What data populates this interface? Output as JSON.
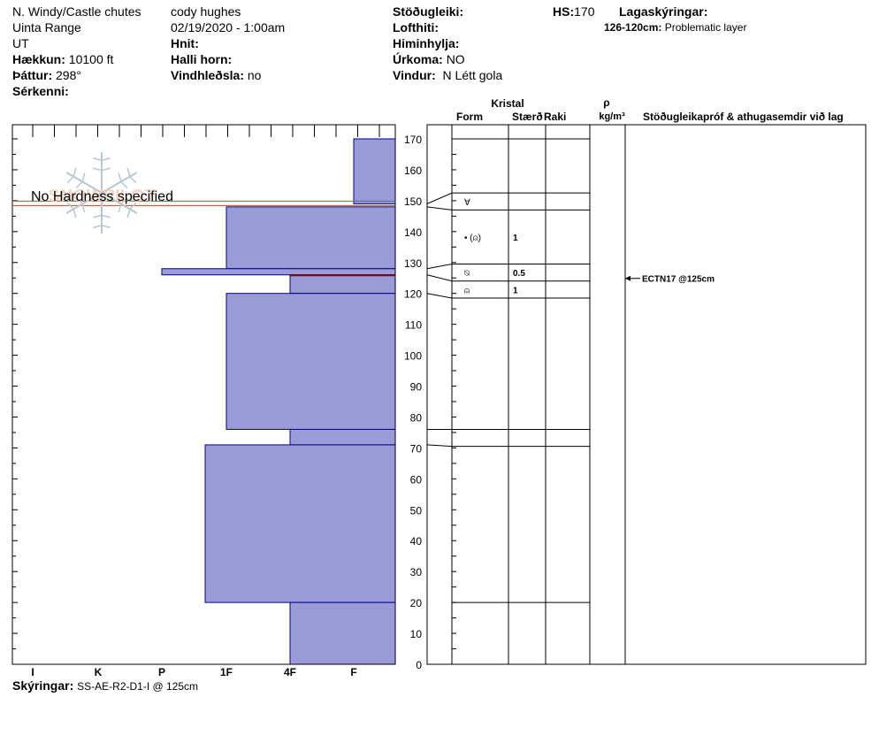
{
  "header": {
    "location": "N. Windy/Castle chutes",
    "range": "Uinta Range",
    "state": "UT",
    "elevation_label": "Hækkun:",
    "elevation": "10100 ft",
    "aspect_label": "Þáttur:",
    "aspect": "298°",
    "features_label": "Sérkenni:",
    "observer": "cody hughes",
    "datetime": "02/19/2020 - 1:00am",
    "coords_label": "Hnit:",
    "slope_label": "Halli horn:",
    "wind_loading_label": "Vindhleðsla:",
    "wind_loading": "no",
    "stability_label": "Stöðugleiki:",
    "air_temp_label": "Lofthiti:",
    "sky_label": "Himinhylja:",
    "precip_label": "Úrkoma:",
    "precip": "NO",
    "wind_label": "Vindur:",
    "wind": "N Létt gola",
    "hs_label": "HS:",
    "hs": "170",
    "layer_notes_label": "Lagaskýringar:",
    "layer_note_range": "126-120cm:",
    "layer_note_text": "Problematic layer"
  },
  "columns": {
    "crystal": "Kristal",
    "form": "Form",
    "size": "Stærð",
    "moisture": "Raki",
    "density_symbol": "ρ",
    "density_unit": "kg/m³",
    "comments": "Stöðugleikapróf & athugasemdir við lag"
  },
  "overlay": {
    "no_hardness": "No Hardness specified",
    "watermark": "SNOWPILOT"
  },
  "footer": {
    "notes_label": "Skýringar:",
    "notes": "SS-AE-R2-D1-I @ 125cm"
  },
  "colors": {
    "layer_fill": "#9b9bd7",
    "layer_stroke": "#00008b",
    "problem_line": "#8b0000",
    "no_hardness_line": "#b05030"
  },
  "chart_data": {
    "type": "bar",
    "hs": 170,
    "ylim": [
      0,
      170
    ],
    "yticks": [
      0,
      10,
      20,
      30,
      40,
      50,
      60,
      70,
      80,
      90,
      100,
      110,
      120,
      130,
      140,
      150,
      160,
      170
    ],
    "hardness_scale": [
      "I",
      "K",
      "P",
      "1F",
      "4F",
      "F"
    ],
    "layers": [
      {
        "top": 170,
        "bottom": 149,
        "hardness": "F"
      },
      {
        "top": 149,
        "bottom": 148,
        "hardness": "none"
      },
      {
        "top": 148,
        "bottom": 128,
        "hardness": "1F"
      },
      {
        "top": 128,
        "bottom": 126,
        "hardness": "P"
      },
      {
        "top": 126,
        "bottom": 120,
        "hardness": "4F"
      },
      {
        "top": 120,
        "bottom": 76,
        "hardness": "1F"
      },
      {
        "top": 76,
        "bottom": 71,
        "hardness": "4F"
      },
      {
        "top": 71,
        "bottom": 20,
        "hardness": "1F+"
      },
      {
        "top": 20,
        "bottom": 0,
        "hardness": "4F"
      }
    ],
    "problematic_layer_top": 126,
    "no_hardness_depth": 149,
    "grain_rows": [
      {
        "top": 152.5,
        "bottom": 147,
        "form": "∀",
        "size": ""
      },
      {
        "top": 147,
        "bottom": 129.5,
        "form": "• (⍝)",
        "size": "1"
      },
      {
        "top": 129.5,
        "bottom": 124,
        "form": "⍉",
        "size": "0.5"
      },
      {
        "top": 124,
        "bottom": 118.5,
        "form": "⍝",
        "size": "1"
      },
      {
        "top": 76,
        "bottom": 70.5,
        "form": "",
        "size": ""
      }
    ],
    "extra_lines": [
      170,
      20
    ],
    "stability_tests": [
      {
        "depth": 125,
        "label": "ECTN17 @125cm"
      }
    ]
  }
}
